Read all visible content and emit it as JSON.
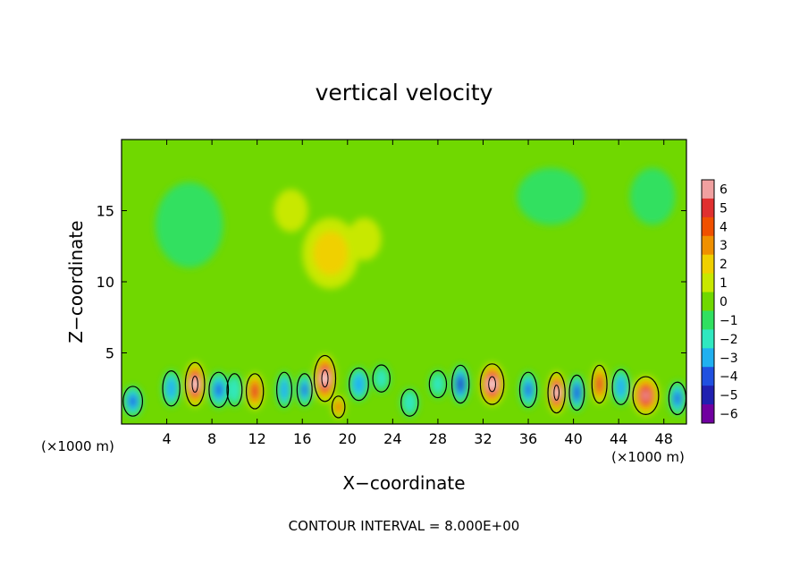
{
  "chart_data": {
    "type": "heatmap",
    "title": "vertical velocity",
    "xlabel": "X−coordinate",
    "ylabel": "Z−coordinate",
    "x_unit_left": "(×1000 m)",
    "x_unit_right": "(×1000 m)",
    "footer": "CONTOUR INTERVAL = 8.000E+00",
    "xlim": [
      0,
      50
    ],
    "ylim": [
      0,
      20
    ],
    "x_ticks": [
      4,
      8,
      12,
      16,
      20,
      24,
      28,
      32,
      36,
      40,
      44,
      48
    ],
    "y_ticks": [
      5,
      10,
      15
    ],
    "colorbar": {
      "range": [
        -6,
        6
      ],
      "labels": [
        "6",
        "5",
        "4",
        "3",
        "2",
        "1",
        "0",
        "−1",
        "−2",
        "−3",
        "−4",
        "−5",
        "−6"
      ],
      "colors": [
        "#f0a0a0",
        "#e03030",
        "#f05000",
        "#f09000",
        "#f0d000",
        "#c8e800",
        "#70d800",
        "#30e060",
        "#30e8c0",
        "#20b0f0",
        "#2050e0",
        "#2020b0",
        "#7000a0"
      ]
    },
    "background_value": 0,
    "features": [
      {
        "x": 6.5,
        "z": 2.8,
        "value": 6.5,
        "sx": 0.9,
        "sz": 1.6
      },
      {
        "x": 4.4,
        "z": 2.5,
        "value": -3.5,
        "sx": 0.8,
        "sz": 1.3
      },
      {
        "x": 8.6,
        "z": 2.4,
        "value": -4,
        "sx": 0.9,
        "sz": 1.3
      },
      {
        "x": 1.0,
        "z": 1.6,
        "value": -4,
        "sx": 0.9,
        "sz": 1.1
      },
      {
        "x": 11.8,
        "z": 2.3,
        "value": 4.5,
        "sx": 0.8,
        "sz": 1.3
      },
      {
        "x": 10.0,
        "z": 2.4,
        "value": -2.5,
        "sx": 0.7,
        "sz": 1.2
      },
      {
        "x": 14.4,
        "z": 2.4,
        "value": -3.5,
        "sx": 0.7,
        "sz": 1.3
      },
      {
        "x": 18.0,
        "z": 3.2,
        "value": 6.5,
        "sx": 1.0,
        "sz": 1.7
      },
      {
        "x": 19.2,
        "z": 1.2,
        "value": 4,
        "sx": 0.6,
        "sz": 0.8
      },
      {
        "x": 16.2,
        "z": 2.4,
        "value": -4,
        "sx": 0.7,
        "sz": 1.2
      },
      {
        "x": 21.0,
        "z": 2.8,
        "value": -3.5,
        "sx": 0.9,
        "sz": 1.2
      },
      {
        "x": 23.0,
        "z": 3.2,
        "value": -2,
        "sx": 0.8,
        "sz": 1.0
      },
      {
        "x": 25.5,
        "z": 1.5,
        "value": -2.5,
        "sx": 0.8,
        "sz": 1.0
      },
      {
        "x": 28.0,
        "z": 2.8,
        "value": -2,
        "sx": 0.8,
        "sz": 1.0
      },
      {
        "x": 30.0,
        "z": 2.8,
        "value": -5,
        "sx": 0.8,
        "sz": 1.4
      },
      {
        "x": 32.8,
        "z": 2.8,
        "value": 6.5,
        "sx": 1.1,
        "sz": 1.5
      },
      {
        "x": 36.0,
        "z": 2.4,
        "value": -4,
        "sx": 0.8,
        "sz": 1.3
      },
      {
        "x": 38.5,
        "z": 2.2,
        "value": 6.5,
        "sx": 0.8,
        "sz": 1.5
      },
      {
        "x": 40.3,
        "z": 2.2,
        "value": -4.5,
        "sx": 0.7,
        "sz": 1.3
      },
      {
        "x": 42.3,
        "z": 2.8,
        "value": 5,
        "sx": 0.7,
        "sz": 1.4
      },
      {
        "x": 44.2,
        "z": 2.6,
        "value": -3.5,
        "sx": 0.8,
        "sz": 1.3
      },
      {
        "x": 46.4,
        "z": 2.0,
        "value": 5.5,
        "sx": 1.2,
        "sz": 1.4
      },
      {
        "x": 49.2,
        "z": 1.8,
        "value": -4,
        "sx": 0.8,
        "sz": 1.2
      },
      {
        "x": 18.5,
        "z": 12.0,
        "value": 1.5,
        "sx": 2.5,
        "sz": 2.5
      },
      {
        "x": 21.5,
        "z": 13.0,
        "value": 1,
        "sx": 1.5,
        "sz": 1.5
      },
      {
        "x": 15.0,
        "z": 15.0,
        "value": 0.8,
        "sx": 1.5,
        "sz": 1.5
      },
      {
        "x": 38.0,
        "z": 16.0,
        "value": -1,
        "sx": 3.0,
        "sz": 2.0
      },
      {
        "x": 47.0,
        "z": 16.0,
        "value": -1,
        "sx": 2.0,
        "sz": 2.0
      },
      {
        "x": 6.0,
        "z": 14.0,
        "value": -0.8,
        "sx": 3.0,
        "sz": 3.0
      }
    ]
  }
}
